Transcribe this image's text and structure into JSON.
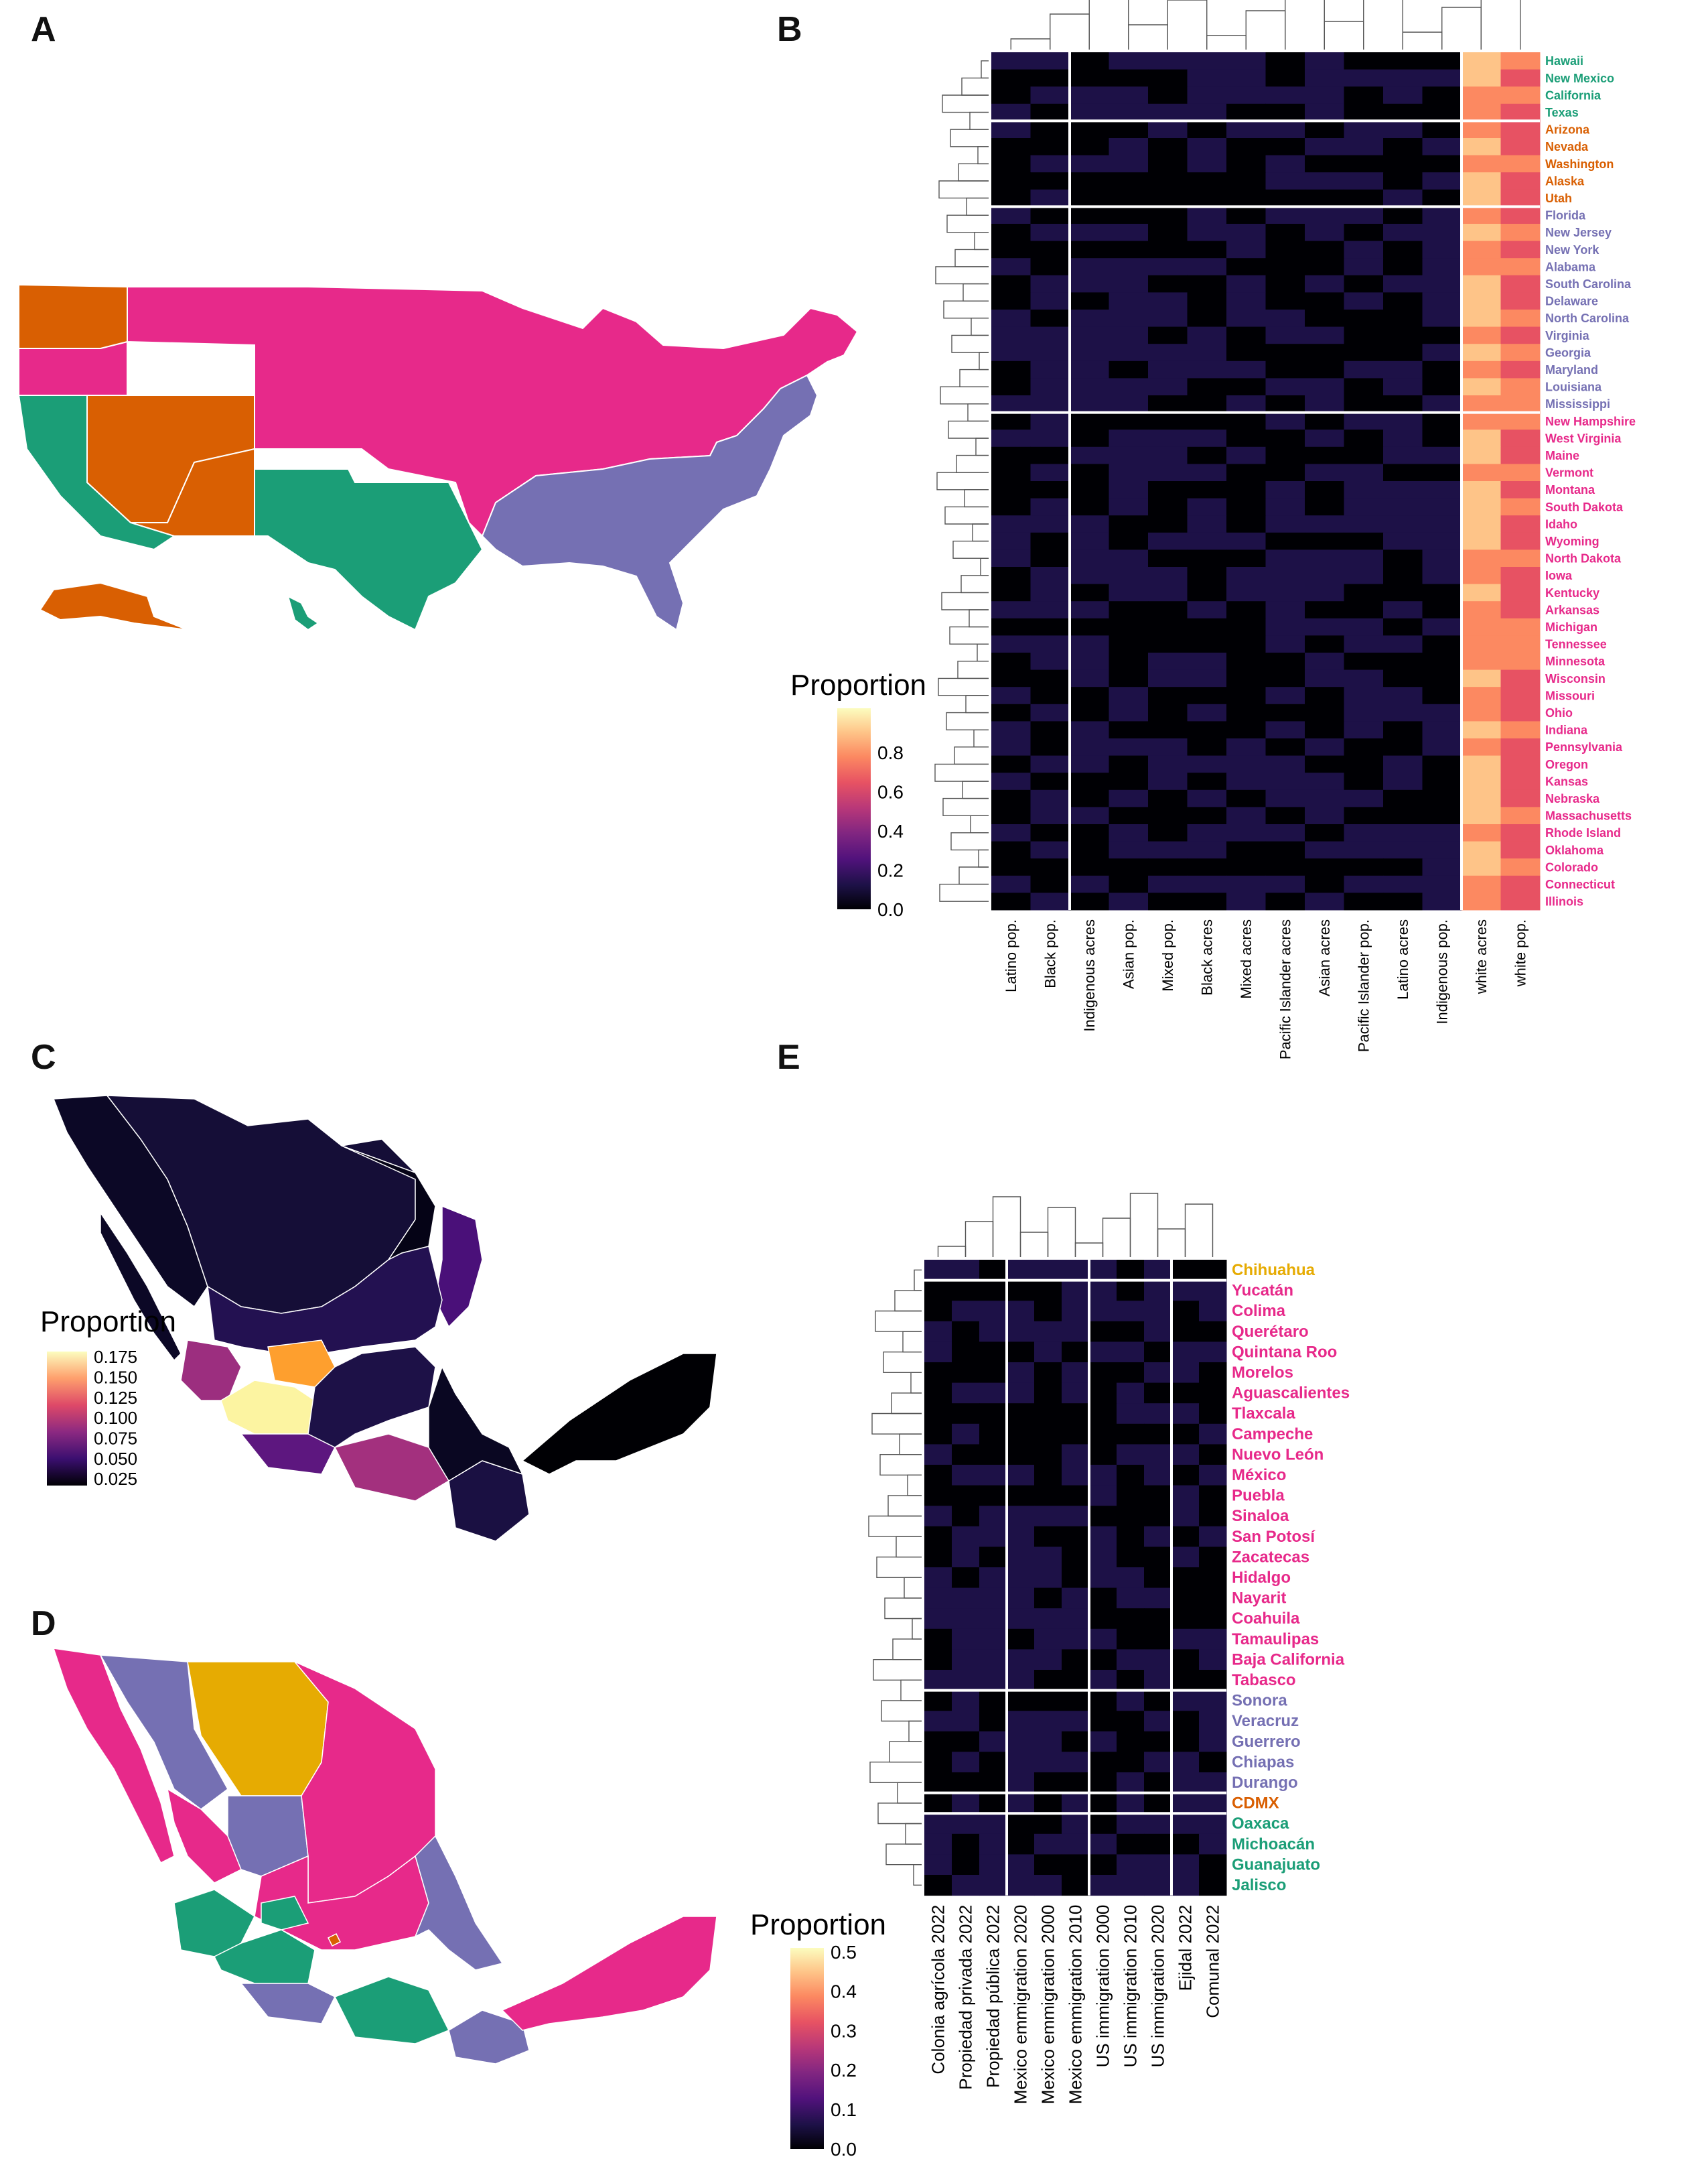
{
  "panels": {
    "a": "A",
    "b": "B",
    "c": "C",
    "d": "D",
    "e": "E"
  },
  "colors": {
    "green": "#1b9e77",
    "orange": "#d95f02",
    "purple": "#7570b3",
    "pink": "#e7298a",
    "gold": "#e6ab02",
    "colormap": [
      "#000004",
      "#1d1147",
      "#51127c",
      "#822681",
      "#b73779",
      "#e75263",
      "#fc8961",
      "#fec488",
      "#fcfdbf"
    ]
  },
  "heatmap_b": {
    "legend_title": "Proportion",
    "legend_ticks": [
      "0.8",
      "0.6",
      "0.4",
      "0.2",
      "0.0"
    ],
    "columns": [
      "Latino pop.",
      "Black pop.",
      "Indigenous acres",
      "Asian pop.",
      "Mixed pop.",
      "Black acres",
      "Mixed acres",
      "Pacific Islander acres",
      "Asian acres",
      "Pacific Islander pop.",
      "Latino acres",
      "Indigenous pop.",
      "white acres",
      "white pop."
    ],
    "groups": [
      {
        "color": "green",
        "rows": [
          "Hawaii",
          "New Mexico",
          "California",
          "Texas"
        ]
      },
      {
        "color": "orange",
        "rows": [
          "Arizona",
          "Nevada",
          "Washington",
          "Alaska",
          "Utah"
        ]
      },
      {
        "color": "purple",
        "rows": [
          "Florida",
          "New Jersey",
          "New York",
          "Alabama",
          "South Carolina",
          "Delaware",
          "North Carolina",
          "Virginia",
          "Georgia",
          "Maryland",
          "Louisiana",
          "Mississippi"
        ]
      },
      {
        "color": "pink",
        "rows": [
          "New Hampshire",
          "West Virginia",
          "Maine",
          "Vermont",
          "Montana",
          "South Dakota",
          "Idaho",
          "Wyoming",
          "North Dakota",
          "Iowa",
          "Kentucky",
          "Arkansas",
          "Michigan",
          "Tennessee",
          "Minnesota",
          "Wisconsin",
          "Missouri",
          "Ohio",
          "Indiana",
          "Pennsylvania",
          "Oregon",
          "Kansas",
          "Nebraska",
          "Massachusetts",
          "Rhode Island",
          "Oklahoma",
          "Colorado",
          "Connecticut",
          "Illinois"
        ]
      }
    ]
  },
  "map_c": {
    "legend_title": "Proportion",
    "legend_ticks": [
      "0.175",
      "0.150",
      "0.125",
      "0.100",
      "0.075",
      "0.050",
      "0.025"
    ]
  },
  "heatmap_e": {
    "legend_title": "Proportion",
    "legend_ticks": [
      "0.5",
      "0.4",
      "0.3",
      "0.2",
      "0.1",
      "0.0"
    ],
    "columns": [
      "Colonia agrícola 2022",
      "Propiedad privada 2022",
      "Propiedad pública 2022",
      "Mexico emmigration 2020",
      "Mexico emmigration 2000",
      "Mexico emmigration 2010",
      "US immigration 2000",
      "US immigration 2010",
      "US immigration 2020",
      "Ejidal 2022",
      "Comunal 2022"
    ],
    "groups": [
      {
        "color": "gold",
        "rows": [
          "Chihuahua"
        ]
      },
      {
        "color": "pink",
        "rows": [
          "Yucatán",
          "Colima",
          "Querétaro",
          "Quintana Roo",
          "Morelos",
          "Aguascalientes",
          "Tlaxcala",
          "Campeche",
          "Nuevo León",
          "México",
          "Puebla",
          "Sinaloa",
          "San Potosí",
          "Zacatecas",
          "Hidalgo",
          "Nayarit",
          "Coahuila",
          "Tamaulipas",
          "Baja California",
          "Tabasco"
        ]
      },
      {
        "color": "purple",
        "rows": [
          "Sonora",
          "Veracruz",
          "Guerrero",
          "Chiapas",
          "Durango"
        ]
      },
      {
        "color": "orange",
        "rows": [
          "CDMX"
        ]
      },
      {
        "color": "green",
        "rows": [
          "Oaxaca",
          "Michoacán",
          "Guanajuato",
          "Jalisco"
        ]
      }
    ]
  }
}
